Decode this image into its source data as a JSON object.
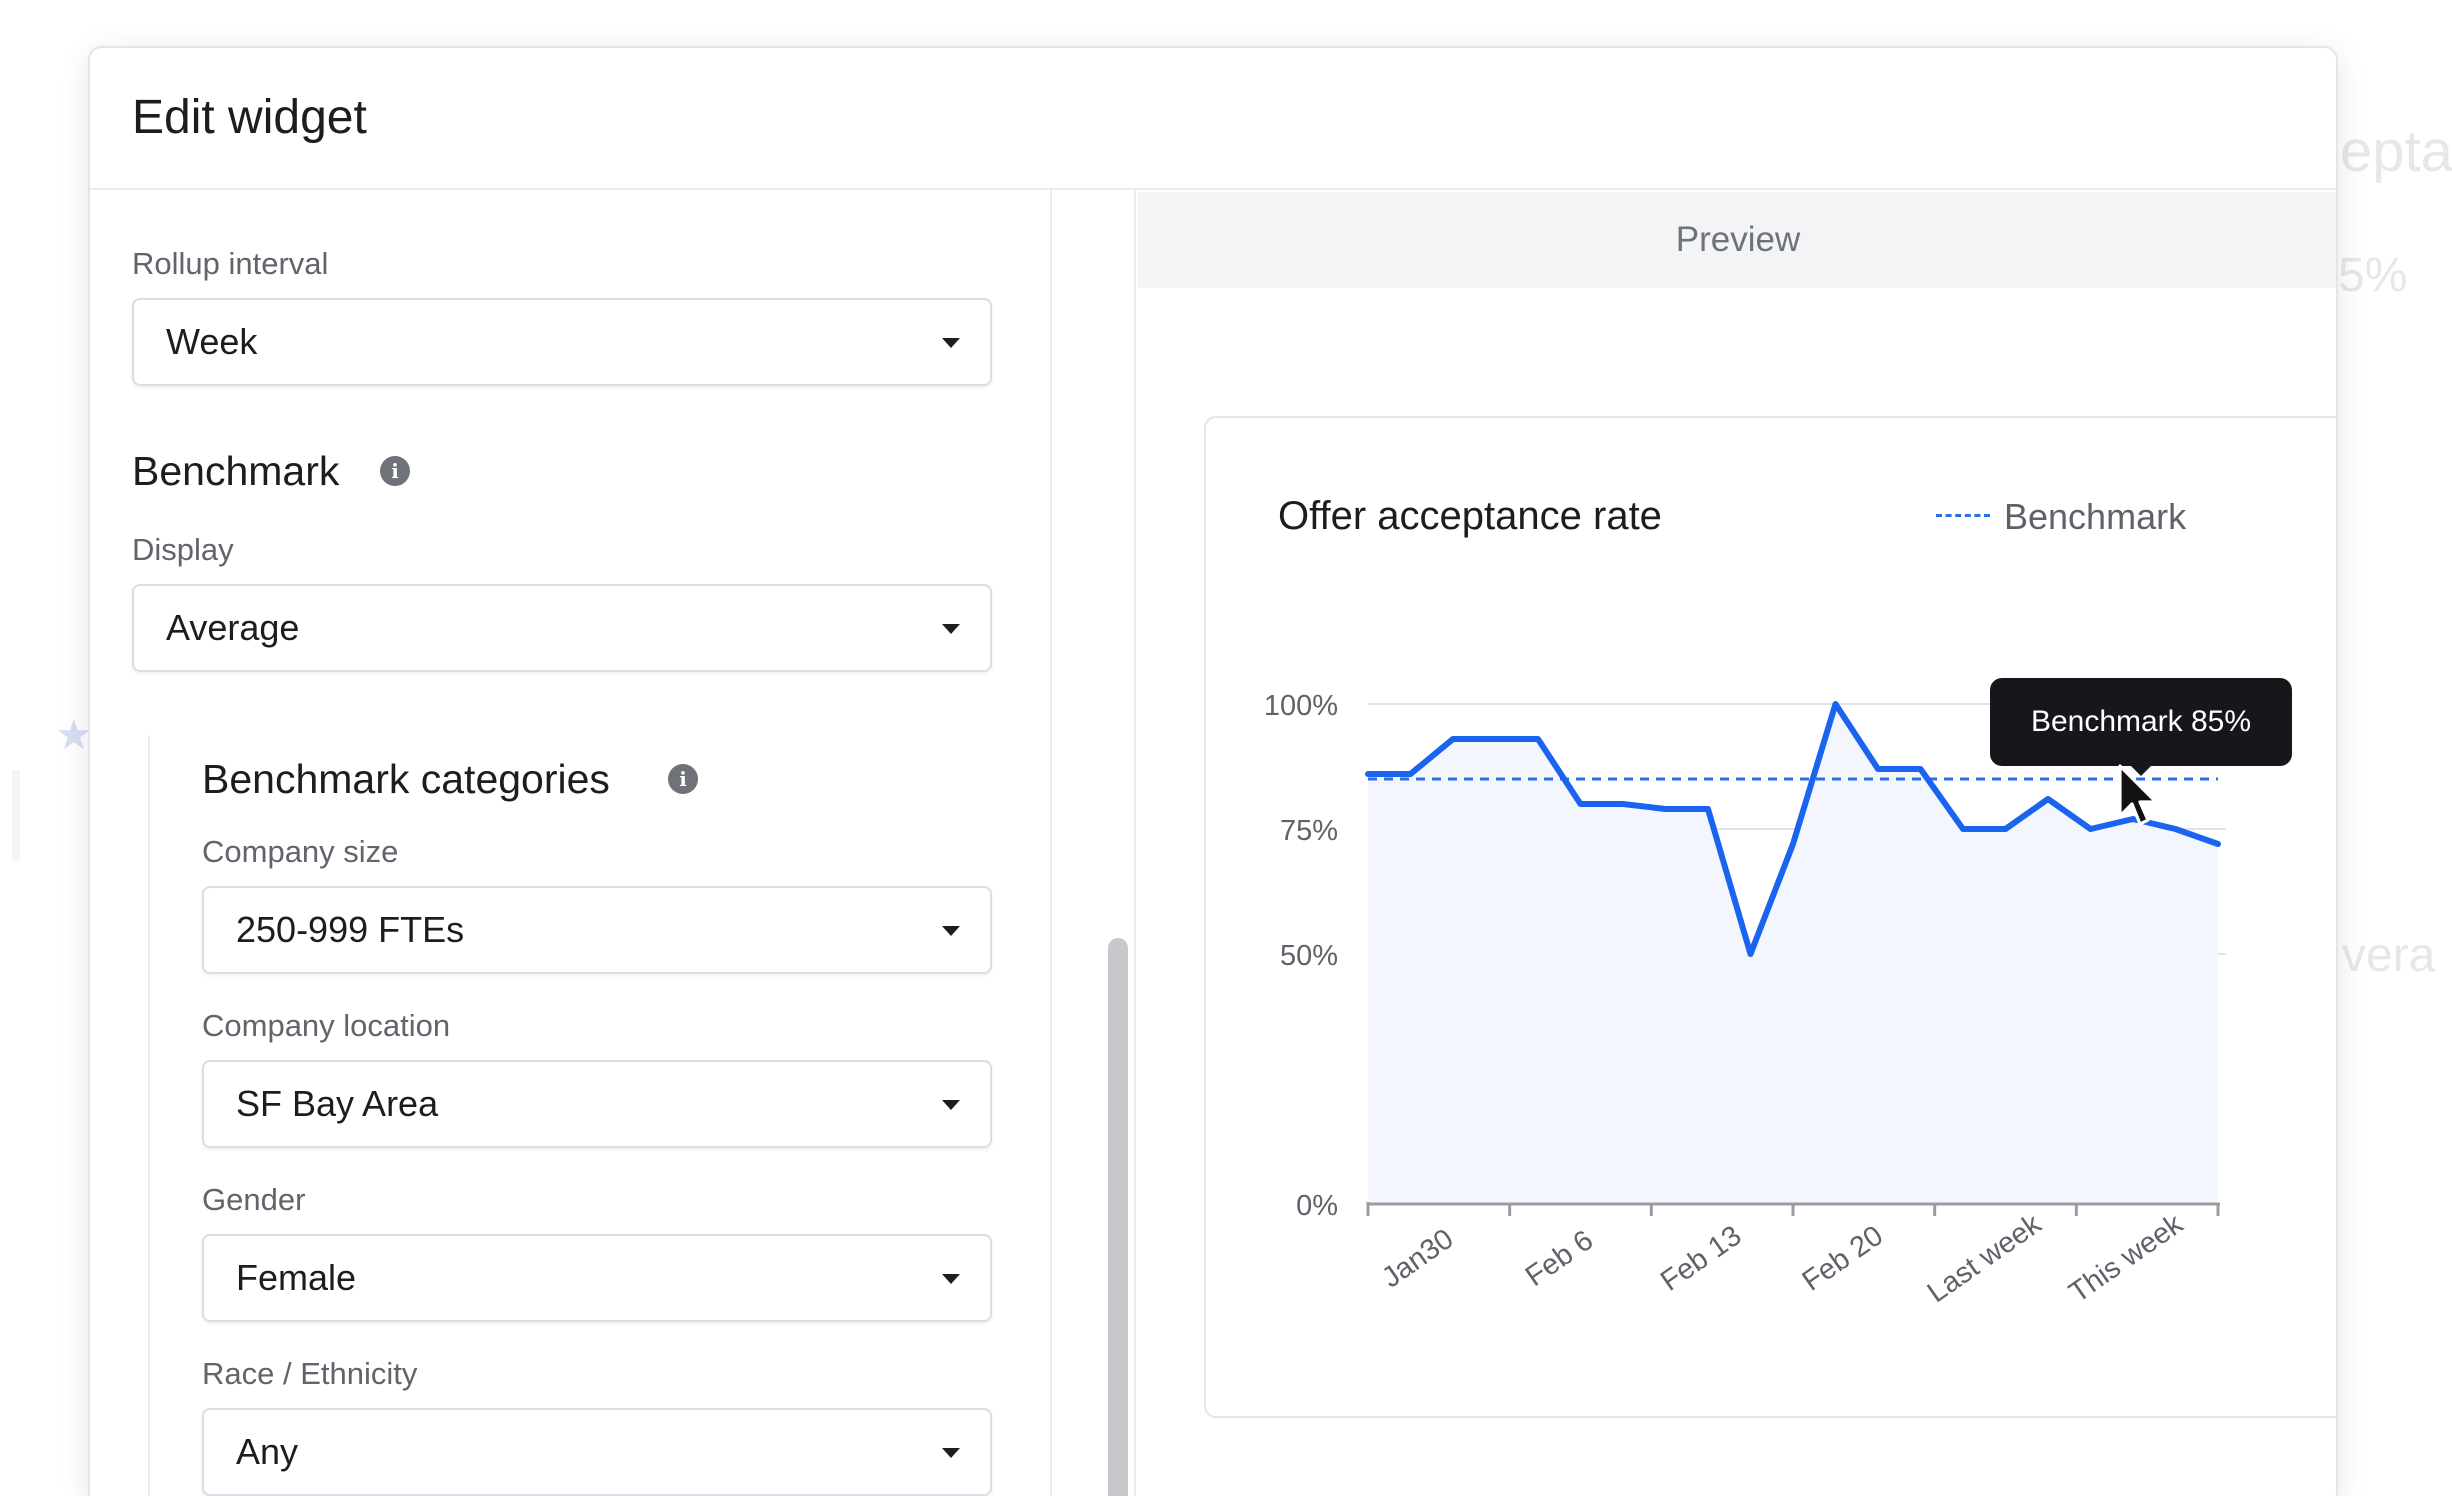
{
  "background": {
    "faded_texts": [
      "epta",
      "5%",
      "vera"
    ],
    "star_icon": "star-icon"
  },
  "modal": {
    "title": "Edit widget"
  },
  "settings": {
    "rollup": {
      "label": "Rollup interval",
      "value": "Week"
    },
    "benchmark": {
      "title": "Benchmark",
      "display_label": "Display",
      "display_value": "Average"
    },
    "categories": {
      "title": "Benchmark categories",
      "company_size": {
        "label": "Company size",
        "value": "250-999 FTEs"
      },
      "company_location": {
        "label": "Company location",
        "value": "SF Bay Area"
      },
      "gender": {
        "label": "Gender",
        "value": "Female"
      },
      "race": {
        "label": "Race / Ethnicity",
        "value": "Any"
      }
    }
  },
  "preview": {
    "label": "Preview",
    "tooltip": "Benchmark 85%"
  },
  "colors": {
    "line": "#1a64f0",
    "benchmark": "#2b6fe8",
    "area": "#f3f6fc",
    "grid": "#e2e3e6",
    "axis": "#9a9ca1"
  },
  "chart_data": {
    "type": "line",
    "title": "Offer acceptance rate",
    "legend": [
      "Benchmark"
    ],
    "legend_position": "top-right",
    "y_ticks": [
      "100%",
      "75%",
      "50%",
      "0%"
    ],
    "x_ticks": [
      "Jan30",
      "Feb 6",
      "Feb 13",
      "Feb 20",
      "Last week",
      "This week"
    ],
    "ylim": [
      0,
      100
    ],
    "grid": true,
    "area_fill": true,
    "series": [
      {
        "values": [
          86,
          86,
          93,
          93,
          93,
          80,
          80,
          79,
          79,
          50,
          72,
          100,
          87,
          87,
          75,
          75,
          81,
          75,
          77,
          75,
          72
        ]
      }
    ],
    "benchmark": {
      "name": "Benchmark",
      "value": 85,
      "style": "dashed"
    }
  }
}
